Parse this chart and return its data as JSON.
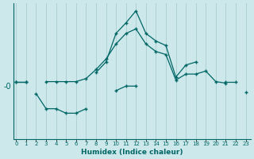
{
  "xlabel": "Humidex (Indice chaleur)",
  "ylabel": "-0",
  "bg_color": "#cde8ea",
  "line_color": "#006666",
  "grid_color": "#aacdd0",
  "xlim_min": -0.3,
  "xlim_max": 23.5,
  "ylim_min": -3.5,
  "ylim_max": 5.5,
  "ytick_val": 0.0,
  "ytick_label": "-0",
  "line1_x": [
    0,
    1,
    2,
    3,
    4,
    5,
    6,
    7,
    8,
    9,
    10,
    11,
    12,
    13,
    14,
    15,
    16,
    17,
    18,
    19,
    20,
    21,
    22,
    23
  ],
  "line1_y": [
    0.3,
    0.3,
    null,
    0.3,
    0.3,
    0.3,
    0.3,
    0.5,
    1.1,
    1.8,
    2.8,
    3.5,
    3.8,
    2.8,
    2.3,
    2.1,
    0.4,
    0.8,
    0.8,
    1.0,
    0.3,
    0.2,
    null,
    -0.4
  ],
  "line2_x": [
    0,
    1,
    2,
    3,
    4,
    5,
    6,
    7,
    8,
    9,
    10,
    11,
    12,
    13,
    14,
    15,
    16,
    17,
    18,
    19,
    20,
    21,
    22,
    23
  ],
  "line2_y": [
    0.3,
    0.3,
    null,
    null,
    null,
    null,
    null,
    null,
    0.9,
    1.6,
    3.5,
    4.2,
    5.0,
    3.5,
    3.0,
    2.7,
    0.6,
    1.4,
    1.6,
    null,
    null,
    0.3,
    0.3,
    null
  ],
  "line3_x": [
    0,
    1,
    2,
    3,
    4,
    5,
    6,
    7,
    8,
    9,
    10,
    11,
    12,
    13,
    14,
    15,
    16,
    17,
    18,
    19,
    20,
    21,
    22,
    23
  ],
  "line3_y": [
    null,
    null,
    -0.5,
    -1.5,
    -1.5,
    -1.8,
    -1.8,
    -1.5,
    null,
    null,
    -0.3,
    0.0,
    0.0,
    null,
    null,
    null,
    null,
    null,
    null,
    null,
    null,
    null,
    null,
    null
  ]
}
